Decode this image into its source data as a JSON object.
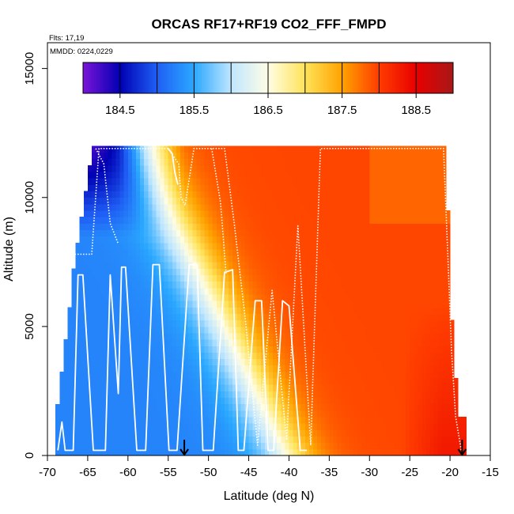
{
  "chart_data": {
    "type": "heatmap",
    "title": "ORCAS RF17+RF19 CO2_FFF_FMPD",
    "flights_note": "Flts: 17,19",
    "dates_note": "MMDD: 0224,0229",
    "xlabel": "Latitude (deg N)",
    "ylabel": "Altitude (m)",
    "xlim": [
      -70,
      -15
    ],
    "ylim": [
      0,
      16000
    ],
    "x_ticks": [
      -70,
      -65,
      -60,
      -55,
      -50,
      -45,
      -40,
      -35,
      -30,
      -25,
      -20,
      -15
    ],
    "y_ticks": [
      0,
      5000,
      10000,
      15000
    ],
    "colorbar": {
      "min": 184.0,
      "max": 189.0,
      "ticks": [
        184.5,
        185.5,
        186.5,
        187.5,
        188.5
      ],
      "boundaries": [
        184.0,
        184.5,
        185.0,
        185.5,
        186.0,
        186.5,
        187.0,
        187.5,
        188.0,
        188.5,
        189.0
      ],
      "colors": [
        "#7b14d8",
        "#0000b3",
        "#1f5ff5",
        "#2aa8ff",
        "#bfe6ff",
        "#fffde4",
        "#ffe35a",
        "#ffa200",
        "#ff3c00",
        "#e80000",
        "#a81818"
      ]
    },
    "field": {
      "grid_step_lat": 0.5,
      "grid_step_alt": 250,
      "description_lat_range": [
        -69,
        -18
      ],
      "description_alt_range": [
        0,
        12000
      ],
      "sample_values": [
        {
          "lat": -65,
          "alt": 11800,
          "value": 184.6
        },
        {
          "lat": -60,
          "alt": 11000,
          "value": 185.0
        },
        {
          "lat": -65,
          "alt": 9000,
          "value": 185.9
        },
        {
          "lat": -60,
          "alt": 5000,
          "value": 186.2
        },
        {
          "lat": -50,
          "alt": 2000,
          "value": 186.3
        },
        {
          "lat": -45,
          "alt": 8000,
          "value": 187.3
        },
        {
          "lat": -35,
          "alt": 6000,
          "value": 187.8
        },
        {
          "lat": -25,
          "alt": 5000,
          "value": 188.4
        },
        {
          "lat": -20,
          "alt": 3000,
          "value": 188.8
        },
        {
          "lat": -20,
          "alt": 11000,
          "value": 188.2
        }
      ]
    },
    "flight_track_solid": [
      [
        -68.7,
        200
      ],
      [
        -68.2,
        1300
      ],
      [
        -67.8,
        200
      ],
      [
        -66.8,
        200
      ],
      [
        -66.2,
        7000
      ],
      [
        -65.6,
        7000
      ],
      [
        -64.3,
        200
      ],
      [
        -62.8,
        200
      ],
      [
        -62.2,
        7000
      ],
      [
        -61.2,
        2400
      ],
      [
        -60.8,
        7300
      ],
      [
        -60.3,
        7300
      ],
      [
        -58.9,
        200
      ],
      [
        -57.8,
        200
      ],
      [
        -56.9,
        7400
      ],
      [
        -56.1,
        7400
      ],
      [
        -54.9,
        200
      ],
      [
        -53.9,
        200
      ],
      [
        -52.4,
        7400
      ],
      [
        -51.4,
        7400
      ],
      [
        -50.7,
        200
      ],
      [
        -49.4,
        200
      ],
      [
        -48.0,
        7100
      ],
      [
        -47.0,
        7200
      ],
      [
        -46.3,
        200
      ],
      [
        -45.6,
        200
      ],
      [
        -44.2,
        6000
      ],
      [
        -43.4,
        6000
      ],
      [
        -42.6,
        200
      ],
      [
        -41.9,
        200
      ],
      [
        -40.8,
        6000
      ],
      [
        -40.0,
        5800
      ],
      [
        -38.6,
        200
      ],
      [
        -37.8,
        200
      ]
    ],
    "flight_track_dotted": [
      [
        -66.6,
        7800
      ],
      [
        -64.5,
        7800
      ],
      [
        -63.6,
        11900
      ],
      [
        -55,
        11900
      ],
      [
        -53.7,
        11300
      ],
      [
        -53.4,
        10000
      ],
      [
        -52.9,
        9700
      ],
      [
        -51.8,
        11900
      ],
      [
        -48,
        11900
      ],
      [
        -46.8,
        9000
      ],
      [
        -45.4,
        5200
      ],
      [
        -43.9,
        400
      ],
      [
        -42.1,
        6400
      ],
      [
        -40.3,
        600
      ],
      [
        -38.9,
        8900
      ],
      [
        -37.3,
        400
      ],
      [
        -36.1,
        11900
      ],
      [
        -20.8,
        11900
      ],
      [
        -20.3,
        8000
      ],
      [
        -19.8,
        4000
      ],
      [
        -19.3,
        1500
      ],
      [
        -18.6,
        200
      ]
    ],
    "flight_track_dotted_2": [
      [
        -64.0,
        11900
      ],
      [
        -63.0,
        11300
      ],
      [
        -62.2,
        9000
      ],
      [
        -61.2,
        8200
      ]
    ],
    "flight_track_dotted_3": [
      [
        -49.6,
        11900
      ],
      [
        -48.5,
        9800
      ],
      [
        -47.8,
        7000
      ]
    ],
    "flight_track_solid_2": [
      [
        -55,
        11900
      ],
      [
        -54.5,
        11700
      ],
      [
        -54.2,
        11000
      ],
      [
        -53.8,
        10500
      ]
    ],
    "markers": [
      {
        "lat": -53.0,
        "alt": 0,
        "symbol": "down-arrow"
      },
      {
        "lat": -18.5,
        "alt": 0,
        "symbol": "down-arrow"
      }
    ]
  }
}
